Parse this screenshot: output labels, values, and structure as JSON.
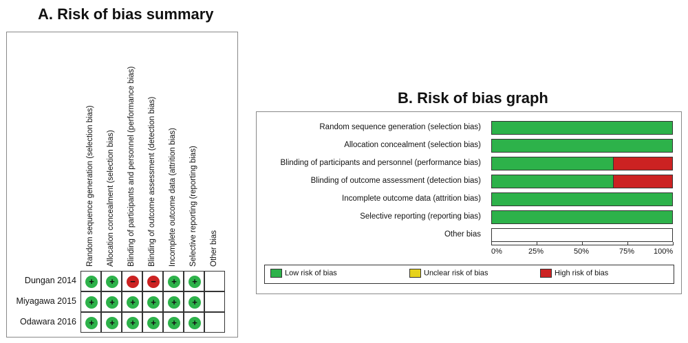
{
  "panel_a": {
    "title": "A. Risk of bias summary",
    "domains": [
      "Random sequence generation (selection bias)",
      "Allocation concealment (selection bias)",
      "Blinding of participants and personnel (performance bias)",
      "Blinding of outcome assessment (detection bias)",
      "Incomplete outcome data (attrition bias)",
      "Selective reporting (reporting bias)",
      "Other bias"
    ],
    "studies": [
      {
        "name": "Dungan 2014",
        "judgements": [
          "low",
          "low",
          "high",
          "high",
          "low",
          "low",
          ""
        ]
      },
      {
        "name": "Miyagawa 2015",
        "judgements": [
          "low",
          "low",
          "low",
          "low",
          "low",
          "low",
          ""
        ]
      },
      {
        "name": "Odawara 2016",
        "judgements": [
          "low",
          "low",
          "low",
          "low",
          "low",
          "low",
          ""
        ]
      }
    ],
    "symbols": {
      "low": "+",
      "high": "−"
    }
  },
  "panel_b": {
    "title": "B. Risk of bias graph",
    "legend": [
      {
        "key": "low",
        "label": "Low risk of bias"
      },
      {
        "key": "unclear",
        "label": "Unclear risk of bias"
      },
      {
        "key": "high",
        "label": "High risk of bias"
      }
    ]
  },
  "colors": {
    "low": "#2db24a",
    "unclear": "#e6d21c",
    "high": "#cc2222"
  },
  "chart_data": {
    "type": "bar",
    "orientation": "horizontal",
    "stacked": true,
    "categories": [
      "Random sequence generation (selection bias)",
      "Allocation concealment (selection bias)",
      "Blinding of participants and personnel (performance bias)",
      "Blinding of outcome assessment (detection bias)",
      "Incomplete outcome data (attrition bias)",
      "Selective reporting (reporting bias)",
      "Other bias"
    ],
    "series": [
      {
        "name": "Low risk of bias",
        "key": "low",
        "values": [
          100,
          100,
          67,
          67,
          100,
          100,
          0
        ]
      },
      {
        "name": "Unclear risk of bias",
        "key": "unclear",
        "values": [
          0,
          0,
          0,
          0,
          0,
          0,
          0
        ]
      },
      {
        "name": "High risk of bias",
        "key": "high",
        "values": [
          0,
          0,
          33,
          33,
          0,
          0,
          0
        ]
      }
    ],
    "x_ticks": [
      "0%",
      "25%",
      "50%",
      "75%",
      "100%"
    ],
    "xlim": [
      0,
      100
    ],
    "legend_position": "bottom"
  }
}
